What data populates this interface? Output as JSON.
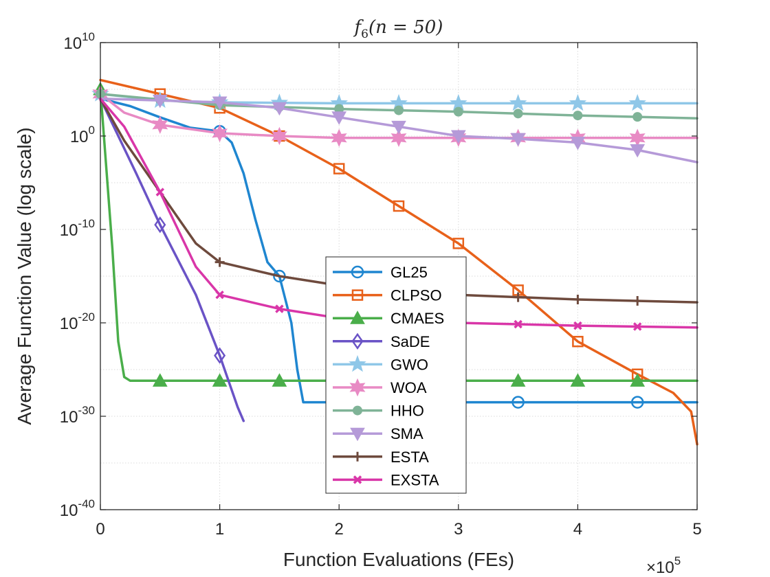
{
  "chart_data": {
    "type": "line",
    "title_main": "f",
    "title_sub": "6",
    "title_args": "(n = 50)",
    "xlabel": "Function Evaluations (FEs)",
    "ylabel": "Average Function Value (log scale)",
    "x_multiplier": {
      "base": "×10",
      "exp": "5"
    },
    "xlim": [
      0,
      5
    ],
    "ylim_log10": [
      -40,
      10
    ],
    "x_ticks": [
      {
        "value": 0,
        "label": "0"
      },
      {
        "value": 1,
        "label": "1"
      },
      {
        "value": 2,
        "label": "2"
      },
      {
        "value": 3,
        "label": "3"
      },
      {
        "value": 4,
        "label": "4"
      },
      {
        "value": 5,
        "label": "5"
      }
    ],
    "y_ticks": [
      {
        "value": 10,
        "base": "10",
        "exp": "10"
      },
      {
        "value": 0,
        "base": "10",
        "exp": "0"
      },
      {
        "value": -10,
        "base": "10",
        "exp": "-10"
      },
      {
        "value": -20,
        "base": "10",
        "exp": "-20"
      },
      {
        "value": -30,
        "base": "10",
        "exp": "-30"
      },
      {
        "value": -40,
        "base": "10",
        "exp": "-40"
      }
    ],
    "grid": true,
    "legend_position": "center-bottom",
    "series": [
      {
        "name": "GL25",
        "color": "#1f86d0",
        "marker": "circle",
        "x": [
          0,
          0.25,
          0.5,
          0.75,
          1.0,
          1.1,
          1.2,
          1.3,
          1.4,
          1.5,
          1.6,
          1.65,
          1.7,
          2,
          3,
          4,
          5
        ],
        "y": [
          4,
          3.2,
          2,
          0.9,
          0.5,
          -0.7,
          -4,
          -9,
          -13.5,
          -15,
          -20,
          -25,
          -28.5,
          -28.5,
          -28.5,
          -28.5,
          -28.5
        ],
        "marker_x": [
          1.0,
          1.5,
          2.5,
          3.5,
          4.5
        ]
      },
      {
        "name": "CLPSO",
        "color": "#e8611a",
        "marker": "square",
        "x": [
          0,
          0.5,
          1,
          1.5,
          2,
          2.5,
          3,
          3.5,
          4,
          4.5,
          4.8,
          4.95,
          5
        ],
        "y": [
          6,
          4.5,
          3,
          0,
          -3.5,
          -7.5,
          -11.5,
          -16.5,
          -22,
          -25.5,
          -27.5,
          -29.5,
          -33
        ],
        "marker_x": [
          0.5,
          1,
          1.5,
          2,
          2.5,
          3,
          3.5,
          4,
          4.5
        ]
      },
      {
        "name": "CMAES",
        "color": "#4aae4a",
        "marker": "triangle",
        "x": [
          0,
          0.1,
          0.15,
          0.2,
          0.25,
          5
        ],
        "y": [
          5,
          -12,
          -22,
          -25.8,
          -26.2,
          -26.2
        ],
        "marker_x": [
          0,
          0.5,
          1,
          1.5,
          2,
          2.5,
          3,
          3.5,
          4,
          4.5
        ]
      },
      {
        "name": "SaDE",
        "color": "#6a53c6",
        "marker": "diamond",
        "x": [
          0,
          0.3,
          0.5,
          0.8,
          1.0,
          1.15,
          1.2
        ],
        "y": [
          4,
          -4,
          -9.5,
          -17,
          -23.5,
          -29,
          -30.5
        ],
        "marker_x": [
          0.5,
          1
        ]
      },
      {
        "name": "GWO",
        "color": "#8fc7e8",
        "marker": "star",
        "x": [
          0,
          0.5,
          1,
          2,
          3,
          4,
          5
        ],
        "y": [
          4.5,
          3.8,
          3.6,
          3.5,
          3.5,
          3.5,
          3.5
        ],
        "marker_x": [
          0,
          0.5,
          1,
          1.5,
          2,
          2.5,
          3,
          3.5,
          4,
          4.5
        ]
      },
      {
        "name": "WOA",
        "color": "#e88ac4",
        "marker": "star6",
        "x": [
          0,
          0.2,
          0.5,
          1,
          1.5,
          2,
          5
        ],
        "y": [
          4.5,
          2.5,
          1.2,
          0.3,
          0,
          -0.2,
          -0.2
        ],
        "marker_x": [
          0,
          0.5,
          1,
          1.5,
          2,
          2.5,
          3,
          3.5,
          4,
          4.5
        ]
      },
      {
        "name": "HHO",
        "color": "#7fb397",
        "marker": "dot",
        "x": [
          0,
          1,
          2,
          3,
          4,
          5
        ],
        "y": [
          4.5,
          3.3,
          2.9,
          2.6,
          2.2,
          1.9
        ],
        "marker_x": [
          0,
          0.5,
          1,
          1.5,
          2,
          2.5,
          3,
          3.5,
          4,
          4.5
        ]
      },
      {
        "name": "SMA",
        "color": "#b59ad8",
        "marker": "triangle-down",
        "x": [
          0,
          0.5,
          1,
          1.5,
          2,
          2.5,
          3,
          3.5,
          4,
          4.5,
          5
        ],
        "y": [
          4,
          3.8,
          3.6,
          3.0,
          2,
          1,
          0,
          -0.3,
          -0.7,
          -1.5,
          -2.8
        ],
        "marker_x": [
          0.5,
          1,
          1.5,
          2,
          2.5,
          3,
          3.5,
          4,
          4.5
        ]
      },
      {
        "name": "ESTA",
        "color": "#6e4a3d",
        "marker": "plus",
        "x": [
          0,
          0.2,
          0.5,
          0.8,
          1,
          1.5,
          2,
          3,
          4,
          5
        ],
        "y": [
          4,
          -0.5,
          -6,
          -11.5,
          -13.5,
          -15,
          -16,
          -17,
          -17.5,
          -17.8
        ],
        "marker_x": [
          1,
          3.5,
          4,
          4.5
        ]
      },
      {
        "name": "EXSTA",
        "color": "#d936a8",
        "marker": "cross",
        "x": [
          0,
          0.2,
          0.5,
          0.8,
          1.0,
          1.5,
          2,
          3,
          4,
          5
        ],
        "y": [
          4,
          1,
          -6,
          -14,
          -17,
          -18.5,
          -19.5,
          -20,
          -20.3,
          -20.5
        ],
        "marker_x": [
          0.5,
          1,
          1.5,
          3.5,
          4,
          4.5
        ]
      }
    ]
  }
}
